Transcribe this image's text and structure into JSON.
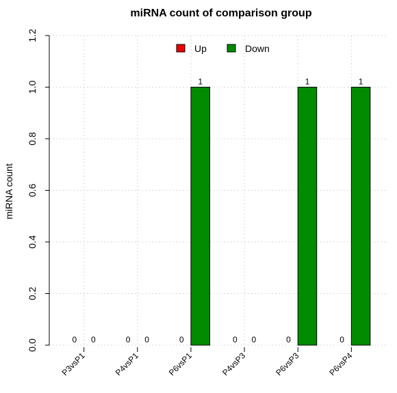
{
  "chart_data": {
    "type": "bar",
    "title": "miRNA count of comparison group",
    "xlabel": "",
    "ylabel": "miRNA count",
    "categories": [
      "P3vsP1",
      "P4vsP1",
      "P6vsP1",
      "P4vsP3",
      "P6vsP3",
      "P6vsP4"
    ],
    "series": [
      {
        "name": "Up",
        "color": "#ee0000",
        "values": [
          0,
          0,
          0,
          0,
          0,
          0
        ]
      },
      {
        "name": "Down",
        "color": "#008b00",
        "values": [
          0,
          0,
          1,
          0,
          1,
          1
        ]
      }
    ],
    "ylim": [
      0,
      1.2
    ],
    "yticks": [
      "0.0",
      "0.2",
      "0.4",
      "0.6",
      "0.8",
      "1.0",
      "1.2"
    ],
    "grid": true,
    "legend_position": "top-center"
  }
}
